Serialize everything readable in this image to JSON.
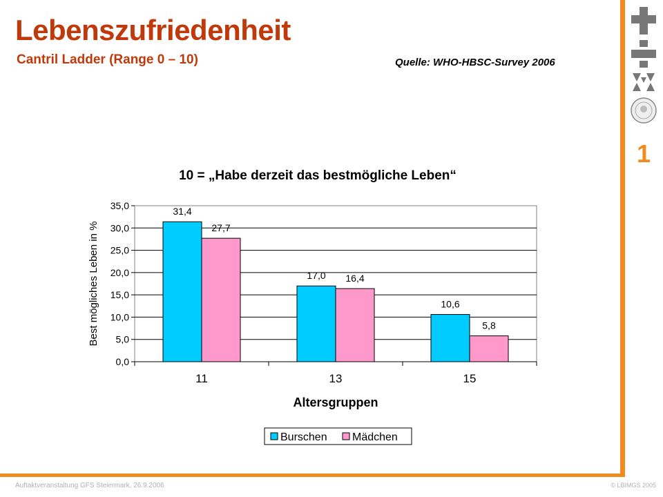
{
  "header": {
    "title": "Lebenszufriedenheit",
    "subtitle": "Cantril Ladder (Range 0 – 10)",
    "source": "Quelle: WHO-HBSC-Survey 2006"
  },
  "page_number": "1",
  "footer": {
    "left": "Auftaktveranstaltung GFS Steiermark, 26.9.2006",
    "right": "© LBIMGS 2005"
  },
  "colors": {
    "accent": "#c0390b",
    "frame": "#f08c1e",
    "burschen": "#00ccff",
    "maedchen": "#ff99cc"
  },
  "chart_data": {
    "type": "bar",
    "title": "10 =  „Habe derzeit das bestmögliche Leben“",
    "xlabel": "Altersgruppen",
    "ylabel": "Best mögliches Leben in %",
    "categories": [
      "11",
      "13",
      "15"
    ],
    "series": [
      {
        "name": "Burschen",
        "values": [
          31.4,
          17.0,
          10.6
        ],
        "labels": [
          "31,4",
          "17,0",
          "10,6"
        ]
      },
      {
        "name": "Mädchen",
        "values": [
          27.7,
          16.4,
          5.8
        ],
        "labels": [
          "27,7",
          "16,4",
          "5,8"
        ]
      }
    ],
    "ylim": [
      0,
      35
    ],
    "yticks": [
      "0,0",
      "5,0",
      "10,0",
      "15,0",
      "20,0",
      "25,0",
      "30,0",
      "35,0"
    ],
    "grid": true,
    "legend": "bottom"
  }
}
